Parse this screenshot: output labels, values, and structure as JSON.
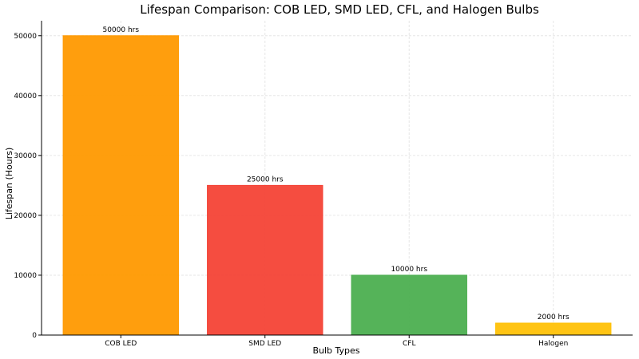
{
  "chart_data": {
    "type": "bar",
    "title": "Lifespan Comparison: COB LED, SMD LED, CFL, and Halogen Bulbs",
    "xlabel": "Bulb Types",
    "ylabel": "Lifespan (Hours)",
    "categories": [
      "COB LED",
      "SMD LED",
      "CFL",
      "Halogen"
    ],
    "values": [
      50000,
      25000,
      10000,
      2000
    ],
    "data_labels": [
      "50000 hrs",
      "25000 hrs",
      "10000 hrs",
      "2000 hrs"
    ],
    "colors": [
      "#ff9900",
      "#f44336",
      "#4caf50",
      "#ffc107"
    ],
    "ylim": [
      0,
      52500
    ],
    "yticks": [
      0,
      10000,
      20000,
      30000,
      40000,
      50000
    ],
    "grid": true
  }
}
